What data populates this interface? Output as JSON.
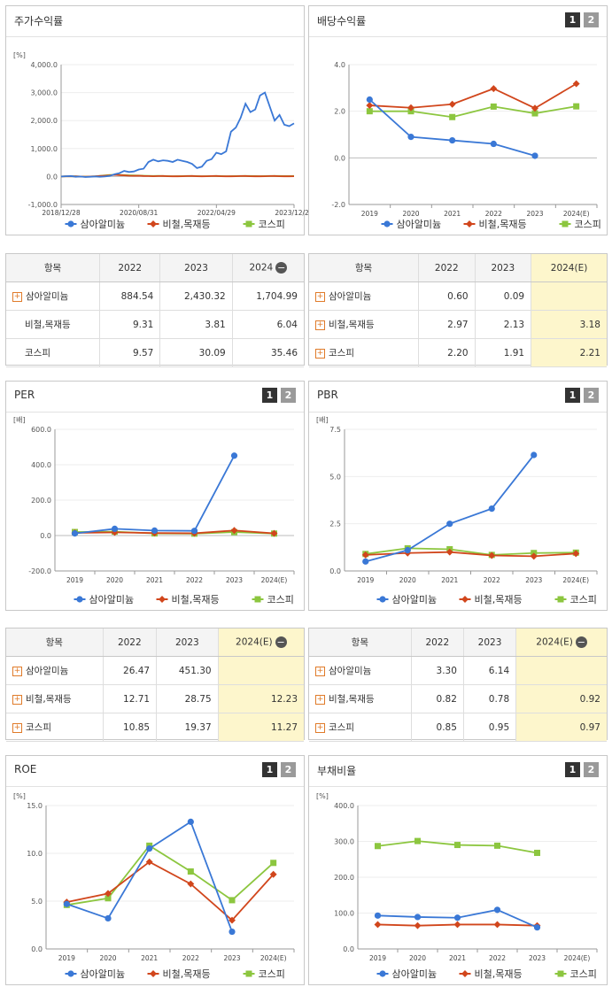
{
  "panels": {
    "stock": {
      "title": "주가수익률"
    },
    "div": {
      "title": "배당수익률"
    },
    "per": {
      "title": "PER"
    },
    "pbr": {
      "title": "PBR"
    },
    "roe": {
      "title": "ROE"
    },
    "debt": {
      "title": "부채비율"
    }
  },
  "buttons": {
    "one": "1",
    "two": "2"
  },
  "legend": {
    "s1": "삼아알미늄",
    "s2": "비철,목재등",
    "s3": "코스피"
  },
  "colors": {
    "s1": "#3a78d6",
    "s2": "#d1461c",
    "s3": "#8cc63f"
  },
  "chart_data": [
    {
      "id": "stock",
      "type": "line",
      "unit": "[%]",
      "ylim": [
        -1000,
        4000
      ],
      "yticks": [
        -1000,
        0,
        1000,
        2000,
        3000,
        4000
      ],
      "ytick_labels": [
        "-1,000.0",
        "0.0",
        "1,000.0",
        "2,000.0",
        "3,000.0",
        "4,000.0"
      ],
      "xticks": [
        "2018/12/28",
        "2020/08/31",
        "2022/04/29",
        "2023/12/28"
      ],
      "series": [
        {
          "name": "삼아알미늄",
          "values": [
            0,
            10,
            20,
            -10,
            0,
            -20,
            -10,
            0,
            -10,
            0,
            20,
            80,
            120,
            200,
            160,
            180,
            250,
            280,
            520,
            600,
            540,
            580,
            560,
            520,
            600,
            560,
            520,
            450,
            300,
            350,
            560,
            620,
            850,
            800,
            900,
            1600,
            1750,
            2100,
            2600,
            2300,
            2400,
            2900,
            3000,
            2500,
            2000,
            2200,
            1850,
            1800,
            1900
          ]
        },
        {
          "name": "비철,목재등",
          "values": [
            0,
            5,
            10,
            5,
            0,
            -5,
            0,
            10,
            20,
            30,
            40,
            60,
            50,
            40,
            30,
            25,
            30,
            20,
            15,
            10,
            15,
            20,
            10,
            5,
            5,
            10,
            15,
            20,
            10,
            5,
            10,
            15,
            20,
            10,
            5,
            5,
            10,
            15,
            20,
            10,
            5,
            5,
            10,
            15,
            20,
            10,
            5,
            5,
            10
          ]
        },
        {
          "name": "코스피",
          "values": [
            0,
            5,
            8,
            5,
            0,
            -3,
            0,
            10,
            25,
            40,
            55,
            60,
            55,
            50,
            45,
            40,
            35,
            30,
            25,
            20,
            25,
            20,
            15,
            10,
            12,
            15,
            18,
            20,
            15,
            10,
            12,
            15,
            18,
            15,
            10,
            12,
            15,
            18,
            20,
            18,
            15,
            12,
            15,
            18,
            20,
            18,
            15,
            15,
            18
          ]
        }
      ]
    },
    {
      "id": "div",
      "type": "line",
      "ylim": [
        -2,
        4
      ],
      "yticks": [
        -2,
        0,
        2,
        4
      ],
      "ytick_labels": [
        "-2.0",
        "0.0",
        "2.0",
        "4.0"
      ],
      "categories": [
        "2019",
        "2020",
        "2021",
        "2022",
        "2023",
        "2024(E)"
      ],
      "series": [
        {
          "name": "삼아알미늄",
          "values": [
            2.5,
            0.9,
            0.75,
            0.6,
            0.09,
            null
          ]
        },
        {
          "name": "비철,목재등",
          "values": [
            2.25,
            2.15,
            2.3,
            2.97,
            2.13,
            3.18
          ]
        },
        {
          "name": "코스피",
          "values": [
            2.0,
            2.0,
            1.75,
            2.2,
            1.91,
            2.21
          ]
        }
      ]
    },
    {
      "id": "per",
      "type": "line",
      "unit": "[배]",
      "ylim": [
        -200,
        600
      ],
      "yticks": [
        -200,
        0,
        200,
        400,
        600
      ],
      "ytick_labels": [
        "-200.0",
        "0.0",
        "200.0",
        "400.0",
        "600.0"
      ],
      "categories": [
        "2019",
        "2020",
        "2021",
        "2022",
        "2023",
        "2024(E)"
      ],
      "series": [
        {
          "name": "삼아알미늄",
          "values": [
            12,
            38,
            28,
            26.47,
            451.3,
            null
          ]
        },
        {
          "name": "비철,목재등",
          "values": [
            15,
            18,
            14,
            12.71,
            28.75,
            12.23
          ]
        },
        {
          "name": "코스피",
          "values": [
            20,
            22,
            12,
            10.85,
            19.37,
            11.27
          ]
        }
      ]
    },
    {
      "id": "pbr",
      "type": "line",
      "unit": "[배]",
      "ylim": [
        0,
        7.5
      ],
      "yticks": [
        0,
        2.5,
        5,
        7.5
      ],
      "ytick_labels": [
        "0.0",
        "2.5",
        "5.0",
        "7.5"
      ],
      "categories": [
        "2019",
        "2020",
        "2021",
        "2022",
        "2023",
        "2024(E)"
      ],
      "series": [
        {
          "name": "삼아알미늄",
          "values": [
            0.5,
            1.1,
            2.5,
            3.3,
            6.14,
            null
          ]
        },
        {
          "name": "비철,목재등",
          "values": [
            0.85,
            0.95,
            1.0,
            0.82,
            0.78,
            0.92
          ]
        },
        {
          "name": "코스피",
          "values": [
            0.9,
            1.2,
            1.15,
            0.85,
            0.95,
            0.97
          ]
        }
      ]
    },
    {
      "id": "roe",
      "type": "line",
      "unit": "[%]",
      "ylim": [
        0,
        15
      ],
      "yticks": [
        0,
        5,
        10,
        15
      ],
      "ytick_labels": [
        "0.0",
        "5.0",
        "10.0",
        "15.0"
      ],
      "categories": [
        "2019",
        "2020",
        "2021",
        "2022",
        "2023",
        "2024(E)"
      ],
      "series": [
        {
          "name": "삼아알미늄",
          "values": [
            4.7,
            3.2,
            10.5,
            13.3,
            1.8,
            null
          ]
        },
        {
          "name": "비철,목재등",
          "values": [
            4.9,
            5.8,
            9.1,
            6.8,
            3.0,
            7.8
          ]
        },
        {
          "name": "코스피",
          "values": [
            4.6,
            5.3,
            10.8,
            8.1,
            5.1,
            9.0
          ]
        }
      ]
    },
    {
      "id": "debt",
      "type": "line",
      "unit": "[%]",
      "ylim": [
        0,
        400
      ],
      "yticks": [
        0,
        100,
        200,
        300,
        400
      ],
      "ytick_labels": [
        "0.0",
        "100.0",
        "200.0",
        "300.0",
        "400.0"
      ],
      "categories": [
        "2019",
        "2020",
        "2021",
        "2022",
        "2023",
        "2024(E)"
      ],
      "series": [
        {
          "name": "삼아알미늄",
          "values": [
            93,
            89,
            87,
            109,
            60,
            null
          ]
        },
        {
          "name": "비철,목재등",
          "values": [
            68,
            65,
            68,
            68,
            65,
            null
          ]
        },
        {
          "name": "코스피",
          "values": [
            287,
            301,
            290,
            288,
            268,
            null
          ]
        }
      ]
    }
  ],
  "tables": {
    "stock": {
      "headers": [
        "항목",
        "2022",
        "2023",
        "2024"
      ],
      "rows": [
        {
          "name": "삼아알미늄",
          "plus": true,
          "vals": [
            "884.54",
            "2,430.32",
            "1,704.99"
          ]
        },
        {
          "name": "비철,목재등",
          "plus": false,
          "vals": [
            "9.31",
            "3.81",
            "6.04"
          ]
        },
        {
          "name": "코스피",
          "plus": false,
          "vals": [
            "9.57",
            "30.09",
            "35.46"
          ]
        }
      ]
    },
    "div": {
      "headers": [
        "항목",
        "2022",
        "2023",
        "2024(E)"
      ],
      "rows": [
        {
          "name": "삼아알미늄",
          "plus": true,
          "vals": [
            "0.60",
            "0.09",
            ""
          ]
        },
        {
          "name": "비철,목재등",
          "plus": true,
          "vals": [
            "2.97",
            "2.13",
            "3.18"
          ]
        },
        {
          "name": "코스피",
          "plus": true,
          "vals": [
            "2.20",
            "1.91",
            "2.21"
          ]
        }
      ]
    },
    "per": {
      "headers": [
        "항목",
        "2022",
        "2023",
        "2024(E)"
      ],
      "rows": [
        {
          "name": "삼아알미늄",
          "plus": true,
          "vals": [
            "26.47",
            "451.30",
            ""
          ]
        },
        {
          "name": "비철,목재등",
          "plus": true,
          "vals": [
            "12.71",
            "28.75",
            "12.23"
          ]
        },
        {
          "name": "코스피",
          "plus": true,
          "vals": [
            "10.85",
            "19.37",
            "11.27"
          ]
        }
      ]
    },
    "pbr": {
      "headers": [
        "항목",
        "2022",
        "2023",
        "2024(E)"
      ],
      "rows": [
        {
          "name": "삼아알미늄",
          "plus": true,
          "vals": [
            "3.30",
            "6.14",
            ""
          ]
        },
        {
          "name": "비철,목재등",
          "plus": true,
          "vals": [
            "0.82",
            "0.78",
            "0.92"
          ]
        },
        {
          "name": "코스피",
          "plus": true,
          "vals": [
            "0.85",
            "0.95",
            "0.97"
          ]
        }
      ]
    }
  }
}
